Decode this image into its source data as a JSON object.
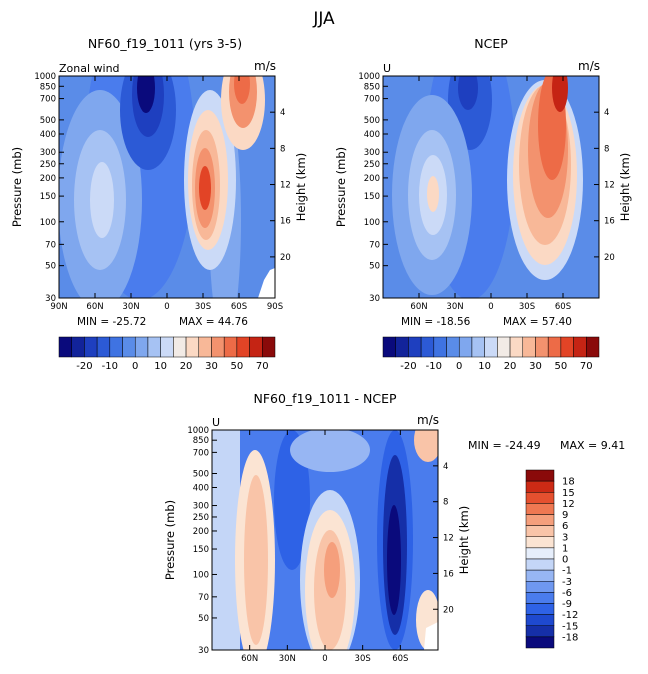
{
  "figure": {
    "title": "JJA"
  },
  "colors": {
    "zonal_palette": [
      "#0a0a7c",
      "#12239a",
      "#1e3fbf",
      "#2c5ad6",
      "#3f73e2",
      "#5a8ce8",
      "#7fa7ee",
      "#a6c2f3",
      "#cbdaf7",
      "#f2ebe6",
      "#fbd9c4",
      "#f8b898",
      "#f3926e",
      "#ed6b47",
      "#e24426",
      "#c52414",
      "#8a0a0a"
    ],
    "diff_palette": [
      "#0a0a7c",
      "#152fa8",
      "#1e49cf",
      "#2e62e6",
      "#4a7ced",
      "#6f98f0",
      "#97b6f3",
      "#c4d6f7",
      "#e6eefb",
      "#fbe4d3",
      "#f9c4a8",
      "#f59f7c",
      "#ef7852",
      "#e5502f",
      "#cc2a15",
      "#8a0a0a"
    ]
  },
  "chart_data": [
    {
      "id": "model",
      "type": "heatmap",
      "title": "NF60_f19_1011 (yrs 3-5)",
      "variable_label": "Zonal wind",
      "units": "m/s",
      "ylabel": "Pressure (mb)",
      "y2label": "Height (km)",
      "xlim": [
        90,
        -90
      ],
      "ylim": [
        1000,
        30
      ],
      "xticks": [
        90,
        60,
        30,
        0,
        -30,
        -60,
        -90
      ],
      "xtick_labels": [
        "90N",
        "60N",
        "30N",
        "0",
        "30S",
        "60S",
        "90S"
      ],
      "yticks": [
        30,
        50,
        70,
        100,
        150,
        200,
        250,
        300,
        400,
        500,
        700,
        850,
        1000
      ],
      "ytick_labels": [
        "30",
        "50",
        "70",
        "100",
        "150",
        "200",
        "250",
        "300",
        "400",
        "500",
        "700",
        "850",
        "1000"
      ],
      "y2ticks": [
        4,
        8,
        12,
        16,
        20
      ],
      "y2tick_labels": [
        "4",
        "8",
        "12",
        "16",
        "20"
      ],
      "min_label": "MIN = -25.72",
      "max_label": "MAX = 44.76",
      "min": -25.72,
      "max": 44.76
    },
    {
      "id": "obs",
      "type": "heatmap",
      "title": "NCEP",
      "variable_label": "U",
      "units": "m/s",
      "ylabel": "Pressure (mb)",
      "y2label": "Height (km)",
      "xlim": [
        90,
        -90
      ],
      "ylim": [
        1000,
        30
      ],
      "xticks": [
        60,
        30,
        0,
        -30,
        -60
      ],
      "xtick_labels": [
        "60N",
        "30N",
        "0",
        "30S",
        "60S"
      ],
      "yticks": [
        30,
        50,
        70,
        100,
        150,
        200,
        250,
        300,
        400,
        500,
        700,
        850,
        1000
      ],
      "ytick_labels": [
        "30",
        "50",
        "70",
        "100",
        "150",
        "200",
        "250",
        "300",
        "400",
        "500",
        "700",
        "850",
        "1000"
      ],
      "y2ticks": [
        4,
        8,
        12,
        16,
        20
      ],
      "y2tick_labels": [
        "4",
        "8",
        "12",
        "16",
        "20"
      ],
      "min_label": "MIN = -18.56",
      "max_label": "MAX = 57.40",
      "min": -18.56,
      "max": 57.4
    },
    {
      "id": "diff",
      "type": "heatmap",
      "title": "NF60_f19_1011 - NCEP",
      "variable_label": "U",
      "units": "m/s",
      "ylabel": "Pressure (mb)",
      "y2label": "Height (km)",
      "xlim": [
        90,
        -90
      ],
      "ylim": [
        1000,
        30
      ],
      "xticks": [
        60,
        30,
        0,
        -30,
        -60
      ],
      "xtick_labels": [
        "60N",
        "30N",
        "0",
        "30S",
        "60S"
      ],
      "yticks": [
        30,
        50,
        70,
        100,
        150,
        200,
        250,
        300,
        400,
        500,
        700,
        850,
        1000
      ],
      "ytick_labels": [
        "30",
        "50",
        "70",
        "100",
        "150",
        "200",
        "250",
        "300",
        "400",
        "500",
        "700",
        "850",
        "1000"
      ],
      "y2ticks": [
        4,
        8,
        12,
        16,
        20
      ],
      "y2tick_labels": [
        "4",
        "8",
        "12",
        "16",
        "20"
      ],
      "min_label": "MIN = -24.49",
      "max_label": "MAX =   9.41",
      "min": -24.49,
      "max": 9.41
    }
  ],
  "colorbars": {
    "zonal": {
      "levels": [
        -25,
        -20,
        -15,
        -10,
        -5,
        0,
        5,
        10,
        15,
        20,
        25,
        30,
        40,
        50,
        60,
        70
      ],
      "labels": [
        "-20",
        "-10",
        "0",
        "10",
        "20",
        "30",
        "50",
        "70"
      ],
      "label_levels": [
        -20,
        -10,
        0,
        10,
        20,
        30,
        50,
        70
      ]
    },
    "diff": {
      "levels": [
        -18,
        -15,
        -12,
        -9,
        -6,
        -3,
        -1,
        0,
        1,
        3,
        6,
        9,
        12,
        15,
        18
      ],
      "labels": [
        "18",
        "15",
        "12",
        "9",
        "6",
        "3",
        "1",
        "0",
        "-1",
        "-3",
        "-6",
        "-9",
        "-12",
        "-15",
        "-18"
      ]
    }
  }
}
